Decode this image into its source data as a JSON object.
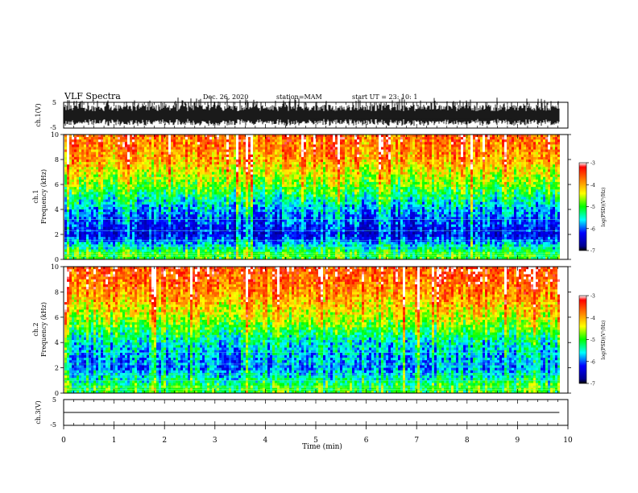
{
  "header": {
    "title": "VLF Spectra",
    "date": "Dec. 26, 2020",
    "station": "station=MAM",
    "start_ut": "start  UT  =   23: 10: 1"
  },
  "chart_data": [
    {
      "type": "line",
      "name": "waveform-ch1",
      "ylabel": "ch.1(V)",
      "ylim": [
        -5,
        5
      ],
      "yticks": [
        "5",
        "-5"
      ],
      "description_values": "dense waveform filling approx -3.5 to 3.5 V with spikes to +4.5"
    },
    {
      "type": "heatmap",
      "name": "spectrogram-ch1",
      "ylabel_top": "ch.1",
      "ylabel": "Frequency  (kHz)",
      "ylim": [
        0,
        10
      ],
      "yticks": [
        "0",
        "2",
        "4",
        "6",
        "8",
        "10"
      ],
      "colorbar": {
        "label": "log(PSD)(V²/Hz)",
        "range": [
          -7,
          -3
        ],
        "ticks": [
          "-3",
          "-4",
          "-5",
          "-6",
          "-7"
        ]
      },
      "intensity_profile": [
        {
          "freq_khz": 0.5,
          "log_psd": -5.0
        },
        {
          "freq_khz": 2,
          "log_psd": -6.4
        },
        {
          "freq_khz": 4,
          "log_psd": -5.8
        },
        {
          "freq_khz": 6,
          "log_psd": -4.8
        },
        {
          "freq_khz": 8,
          "log_psd": -4.0
        },
        {
          "freq_khz": 10,
          "log_psd": -3.6
        }
      ]
    },
    {
      "type": "heatmap",
      "name": "spectrogram-ch2",
      "ylabel_top": "ch.2",
      "ylabel": "Frequency  (kHz)",
      "ylim": [
        0,
        10
      ],
      "yticks": [
        "0",
        "2",
        "4",
        "6",
        "8",
        "10"
      ],
      "colorbar": {
        "label": "log(PSD)(V²/Hz)",
        "range": [
          -7,
          -3
        ],
        "ticks": [
          "-3",
          "-4",
          "-5",
          "-6",
          "-7"
        ]
      },
      "intensity_profile": [
        {
          "freq_khz": 0.5,
          "log_psd": -5.0
        },
        {
          "freq_khz": 2,
          "log_psd": -5.9
        },
        {
          "freq_khz": 4,
          "log_psd": -5.5
        },
        {
          "freq_khz": 6,
          "log_psd": -4.5
        },
        {
          "freq_khz": 8,
          "log_psd": -3.8
        },
        {
          "freq_khz": 10,
          "log_psd": -3.4
        }
      ]
    },
    {
      "type": "line",
      "name": "waveform-ch3",
      "ylabel": "ch.3(V)",
      "ylim": [
        -5,
        5
      ],
      "yticks": [
        "5",
        "-5"
      ],
      "x": [
        0,
        9.83
      ],
      "y": [
        0,
        0
      ]
    }
  ],
  "xaxis": {
    "label": "Time  (min)",
    "range": [
      0,
      10
    ],
    "ticks": [
      "0",
      "1",
      "2",
      "3",
      "4",
      "5",
      "6",
      "7",
      "8",
      "9",
      "10"
    ],
    "data_end_min": 9.83
  }
}
